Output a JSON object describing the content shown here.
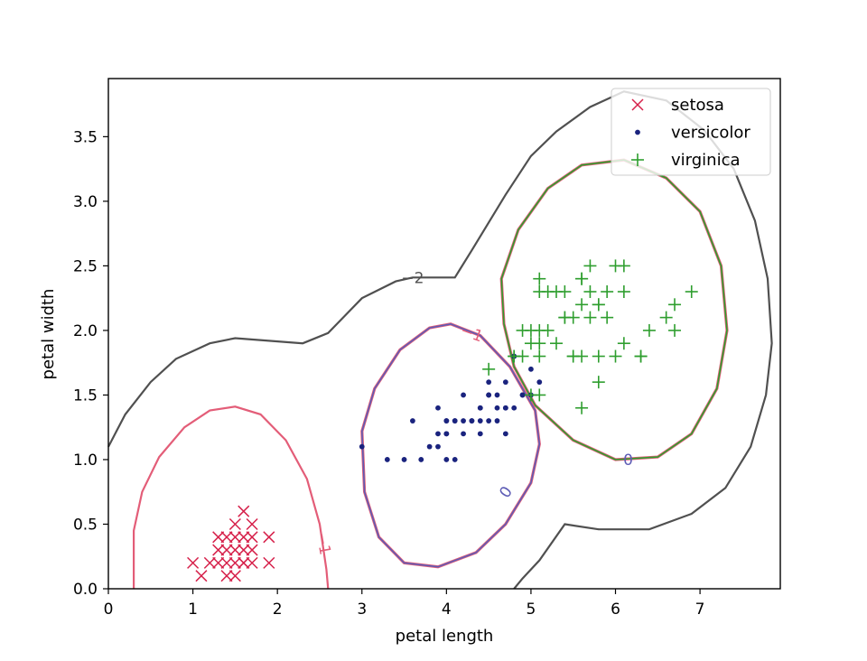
{
  "chart_data": {
    "type": "scatter",
    "title": "",
    "xlabel": "petal length",
    "ylabel": "petal width",
    "xlim": [
      0,
      7.95
    ],
    "ylim": [
      0,
      3.95
    ],
    "xticks": [
      0,
      1,
      2,
      3,
      4,
      5,
      6,
      7
    ],
    "yticks": [
      0.0,
      0.5,
      1.0,
      1.5,
      2.0,
      2.5,
      3.0,
      3.5
    ],
    "xtick_labels": [
      "0",
      "1",
      "2",
      "3",
      "4",
      "5",
      "6",
      "7"
    ],
    "ytick_labels": [
      "0.0",
      "0.5",
      "1.0",
      "1.5",
      "2.0",
      "2.5",
      "3.0",
      "3.5"
    ],
    "grid": false,
    "legend": {
      "placement": "top-right"
    },
    "series": [
      {
        "name": "setosa",
        "marker": "x",
        "color": "#d6204a",
        "points": [
          [
            1.4,
            0.2
          ],
          [
            1.3,
            0.2
          ],
          [
            1.5,
            0.2
          ],
          [
            1.7,
            0.4
          ],
          [
            1.4,
            0.3
          ],
          [
            1.5,
            0.1
          ],
          [
            1.6,
            0.2
          ],
          [
            1.4,
            0.1
          ],
          [
            1.1,
            0.1
          ],
          [
            1.2,
            0.2
          ],
          [
            1.3,
            0.4
          ],
          [
            1.7,
            0.3
          ],
          [
            1.5,
            0.3
          ],
          [
            1.7,
            0.2
          ],
          [
            1.5,
            0.4
          ],
          [
            1.0,
            0.2
          ],
          [
            1.9,
            0.2
          ],
          [
            1.6,
            0.4
          ],
          [
            1.6,
            0.6
          ],
          [
            1.9,
            0.4
          ],
          [
            1.5,
            0.5
          ],
          [
            1.7,
            0.5
          ],
          [
            1.4,
            0.4
          ],
          [
            1.6,
            0.3
          ],
          [
            1.3,
            0.3
          ],
          [
            1.6,
            0.2
          ]
        ]
      },
      {
        "name": "versicolor",
        "marker": "dot",
        "color": "#1a237e",
        "points": [
          [
            4.7,
            1.4
          ],
          [
            4.5,
            1.5
          ],
          [
            4.9,
            1.5
          ],
          [
            4.0,
            1.3
          ],
          [
            4.6,
            1.5
          ],
          [
            4.5,
            1.3
          ],
          [
            4.7,
            1.6
          ],
          [
            3.3,
            1.0
          ],
          [
            4.6,
            1.3
          ],
          [
            3.9,
            1.4
          ],
          [
            3.5,
            1.0
          ],
          [
            4.2,
            1.5
          ],
          [
            4.0,
            1.0
          ],
          [
            4.7,
            1.4
          ],
          [
            3.6,
            1.3
          ],
          [
            4.4,
            1.4
          ],
          [
            4.1,
            1.0
          ],
          [
            4.5,
            1.5
          ],
          [
            3.9,
            1.1
          ],
          [
            4.8,
            1.8
          ],
          [
            4.0,
            1.3
          ],
          [
            4.9,
            1.5
          ],
          [
            4.7,
            1.2
          ],
          [
            4.3,
            1.3
          ],
          [
            4.4,
            1.4
          ],
          [
            4.8,
            1.4
          ],
          [
            5.0,
            1.7
          ],
          [
            3.8,
            1.1
          ],
          [
            3.7,
            1.0
          ],
          [
            3.9,
            1.2
          ],
          [
            5.1,
            1.6
          ],
          [
            4.5,
            1.6
          ],
          [
            4.4,
            1.3
          ],
          [
            4.1,
            1.3
          ],
          [
            4.0,
            1.2
          ],
          [
            4.4,
            1.2
          ],
          [
            4.6,
            1.4
          ],
          [
            4.0,
            1.2
          ],
          [
            3.0,
            1.1
          ],
          [
            4.2,
            1.3
          ],
          [
            4.2,
            1.2
          ],
          [
            4.3,
            1.3
          ],
          [
            4.1,
            1.3
          ],
          [
            5.0,
            1.5
          ],
          [
            4.8,
            1.8
          ]
        ]
      },
      {
        "name": "virginica",
        "marker": "+",
        "color": "#2e9e2e",
        "points": [
          [
            6.0,
            2.5
          ],
          [
            5.1,
            1.9
          ],
          [
            5.9,
            2.1
          ],
          [
            5.6,
            1.8
          ],
          [
            5.8,
            2.2
          ],
          [
            6.6,
            2.1
          ],
          [
            4.5,
            1.7
          ],
          [
            6.3,
            1.8
          ],
          [
            5.8,
            1.8
          ],
          [
            6.1,
            2.5
          ],
          [
            5.1,
            2.0
          ],
          [
            5.3,
            1.9
          ],
          [
            5.5,
            2.1
          ],
          [
            5.0,
            2.0
          ],
          [
            5.1,
            2.4
          ],
          [
            5.3,
            2.3
          ],
          [
            5.5,
            1.8
          ],
          [
            6.7,
            2.2
          ],
          [
            6.9,
            2.3
          ],
          [
            5.0,
            1.5
          ],
          [
            5.7,
            2.3
          ],
          [
            4.9,
            2.0
          ],
          [
            6.7,
            2.0
          ],
          [
            4.9,
            1.8
          ],
          [
            5.7,
            2.1
          ],
          [
            6.0,
            1.8
          ],
          [
            4.8,
            1.8
          ],
          [
            5.4,
            2.1
          ],
          [
            5.6,
            2.4
          ],
          [
            5.8,
            1.6
          ],
          [
            6.1,
            1.9
          ],
          [
            6.4,
            2.0
          ],
          [
            5.6,
            2.2
          ],
          [
            5.1,
            1.5
          ],
          [
            5.6,
            1.4
          ],
          [
            6.1,
            2.3
          ],
          [
            5.5,
            1.8
          ],
          [
            4.8,
            1.8
          ],
          [
            5.4,
            2.1
          ],
          [
            5.6,
            2.4
          ],
          [
            5.1,
            2.3
          ],
          [
            5.9,
            2.3
          ],
          [
            5.7,
            2.5
          ],
          [
            5.2,
            2.3
          ],
          [
            5.0,
            1.9
          ],
          [
            5.2,
            2.0
          ],
          [
            5.4,
            2.3
          ],
          [
            5.1,
            1.8
          ],
          [
            6.3,
            1.8
          ],
          [
            5.8,
            2.2
          ]
        ]
      }
    ],
    "contours": [
      {
        "level_label": "-2",
        "color": "#505050"
      },
      {
        "level_label": "-1",
        "color": "#e35d78"
      },
      {
        "level_label": "0",
        "color": "#5d5cb5"
      }
    ]
  }
}
